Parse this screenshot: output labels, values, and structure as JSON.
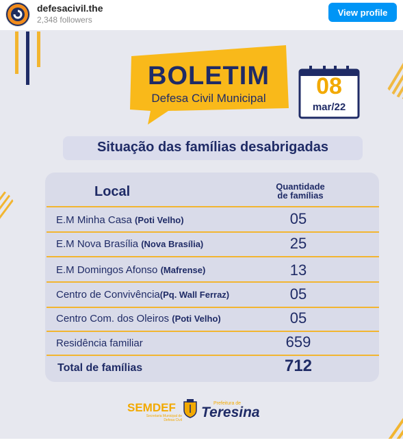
{
  "profile": {
    "username": "defesacivil.the",
    "followers": "2,348 followers",
    "view_profile_label": "View profile"
  },
  "post": {
    "banner_title": "BOLETIM",
    "banner_subtitle": "Defesa Civil Municipal",
    "date_day": "08",
    "date_month": "mar/22",
    "heading": "Situação das famílias desabrigadas",
    "table": {
      "col_local": "Local",
      "col_quantidade": "Quantidade",
      "col_familias": "de famílias",
      "rows": [
        {
          "name": "E.M Minha Casa",
          "area": "(Poti Velho)",
          "value": "05"
        },
        {
          "name": "E.M Nova Brasília",
          "area": "(Nova Brasília)",
          "value": "25"
        },
        {
          "name": "E.M Domingos Afonso",
          "area": "(Mafrense)",
          "value": "13"
        },
        {
          "name": "Centro de Convivência",
          "area": "(Pq. Wall Ferraz)",
          "value": "05"
        },
        {
          "name": "Centro Com. dos Oleiros",
          "area": "(Poti Velho)",
          "value": "05"
        },
        {
          "name": "Residência familiar",
          "area": "",
          "value": "659"
        }
      ],
      "total_label": "Total de famílias",
      "total_value": "712"
    },
    "footer": {
      "semdef": "SEMDEF",
      "semdef_sub": "Secretaria Municipal de Defesa Civil",
      "pref_sub": "Prefeitura de",
      "teresina": "Teresina"
    }
  },
  "colors": {
    "navy": "#1f2b66",
    "yellow": "#f2a900",
    "accent_button": "#0095f6",
    "background": "#e7e8ef"
  }
}
